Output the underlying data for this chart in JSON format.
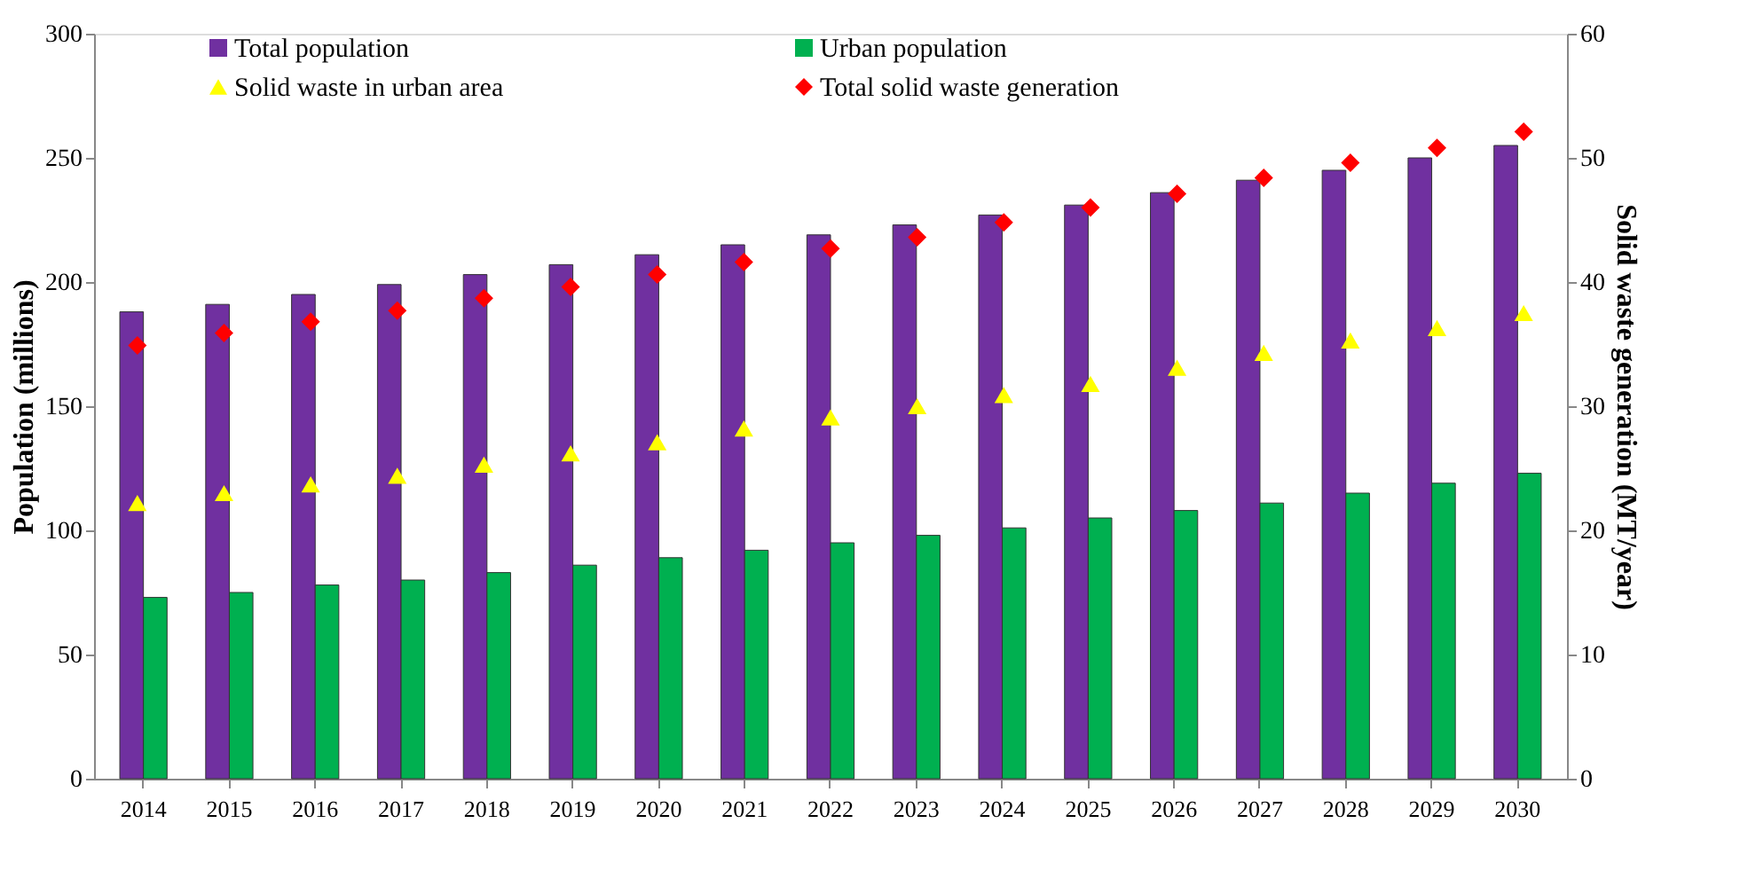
{
  "chart_data": {
    "type": "bar",
    "categories": [
      "2014",
      "2015",
      "2016",
      "2017",
      "2018",
      "2019",
      "2020",
      "2021",
      "2022",
      "2023",
      "2024",
      "2025",
      "2026",
      "2027",
      "2028",
      "2029",
      "2030"
    ],
    "ylabel": "Population (millions)",
    "y2label": "Solid waste generation (MT/year)",
    "ylim": [
      0,
      300
    ],
    "yticks": [
      0,
      50,
      100,
      150,
      200,
      250,
      300
    ],
    "y2lim": [
      0,
      60
    ],
    "y2ticks": [
      0,
      10,
      20,
      30,
      40,
      50,
      60
    ],
    "legend": "top",
    "grid": false,
    "series": [
      {
        "name": "Total population",
        "color": "#7030a0",
        "values": [
          188,
          191,
          195,
          199,
          203,
          207,
          211,
          215,
          219,
          223,
          227,
          231,
          236,
          241,
          245,
          250,
          255
        ]
      },
      {
        "name": "Urban population",
        "color": "#00b050",
        "values": [
          73,
          75,
          78,
          80,
          83,
          86,
          89,
          92,
          95,
          98,
          101,
          105,
          108,
          111,
          115,
          119,
          123
        ]
      },
      {
        "name": "Solid waste in urban area",
        "type": "scatter",
        "axis": "y2",
        "marker": "triangle",
        "color": "#ffff00",
        "values": [
          22.2,
          23.0,
          23.7,
          24.4,
          25.3,
          26.2,
          27.1,
          28.2,
          29.1,
          30.0,
          30.9,
          31.8,
          33.1,
          34.3,
          35.3,
          36.3,
          37.5
        ]
      },
      {
        "name": "Total solid waste generation",
        "type": "scatter",
        "axis": "y2",
        "marker": "diamond",
        "color": "#ff0000",
        "values": [
          34.9,
          35.9,
          36.8,
          37.7,
          38.7,
          39.6,
          40.6,
          41.6,
          42.7,
          43.6,
          44.8,
          46.0,
          47.1,
          48.4,
          49.6,
          50.8,
          52.1
        ]
      }
    ]
  }
}
